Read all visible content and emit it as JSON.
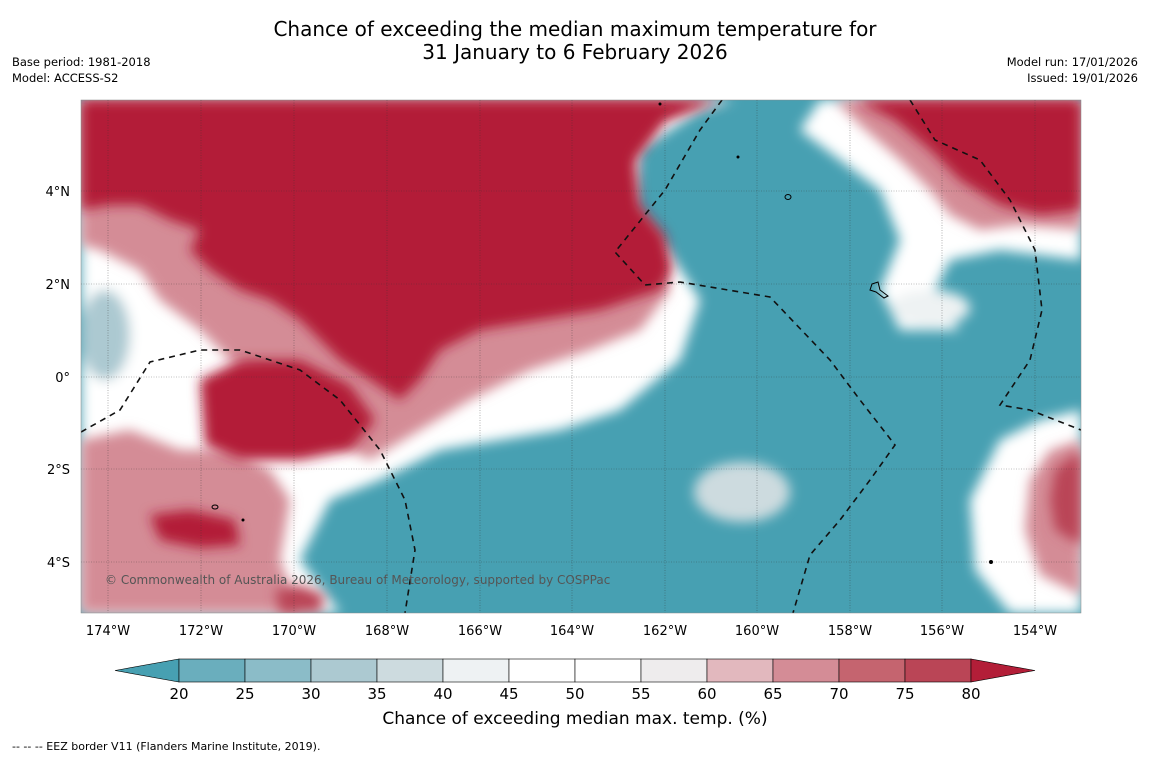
{
  "title": {
    "line1": "Chance of exceeding the median maximum temperature for",
    "line2": "31 January to 6 February 2026"
  },
  "meta_left": {
    "base_period": "Base period: 1981-2018",
    "model": "Model: ACCESS-S2"
  },
  "meta_right": {
    "model_run": "Model run: 17/01/2026",
    "issued": "Issued: 19/01/2026"
  },
  "map": {
    "copyright": "© Commonwealth of Australia 2026, Bureau of Meteorology, supported by COSPPac",
    "lat_labels": [
      "4°N",
      "2°N",
      "0°",
      "2°S",
      "4°S"
    ],
    "lon_labels": [
      "174°W",
      "172°W",
      "170°W",
      "168°W",
      "166°W",
      "164°W",
      "162°W",
      "160°W",
      "158°W",
      "156°W",
      "154°W"
    ],
    "colors": {
      "hot": "#b31e38",
      "cold": "#47a0b2",
      "neutral": "#ffffff"
    }
  },
  "colorbar": {
    "ticks": [
      "20",
      "25",
      "30",
      "35",
      "40",
      "45",
      "50",
      "55",
      "60",
      "65",
      "70",
      "75",
      "80"
    ],
    "bins": [
      "#47a0b2",
      "#6aaebd",
      "#8bbcc8",
      "#acc9d1",
      "#cddbdf",
      "#eef2f3",
      "#ffffff",
      "#ffffff",
      "#eeeced",
      "#e2b8be",
      "#d48c96",
      "#c5646f",
      "#ba4556",
      "#b31e38"
    ],
    "title": "Chance of exceeding median max. temp. (%)"
  },
  "footnote": "-- -- -- EEZ border V11 (Flanders Marine Institute, 2019)."
}
